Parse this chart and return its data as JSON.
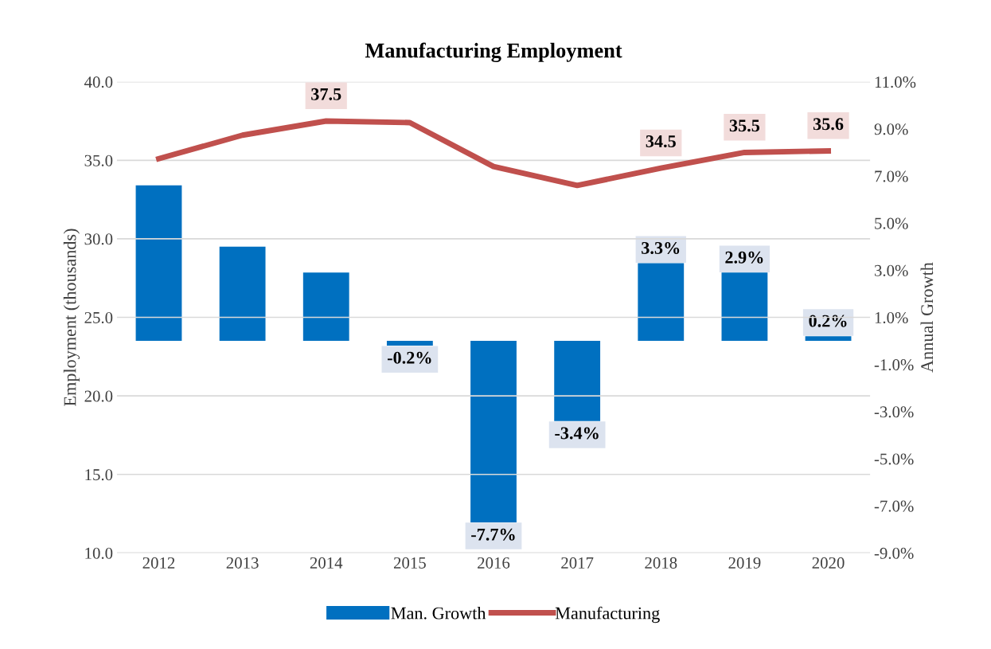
{
  "chart_data": {
    "type": "bar",
    "title": "Manufacturing Employment",
    "ylabel": "Employment (thousands)",
    "y2label": "Annual Growth",
    "categories": [
      "2012",
      "2013",
      "2014",
      "2015",
      "2016",
      "2017",
      "2018",
      "2019",
      "2020"
    ],
    "series": [
      {
        "name": "Man. Growth",
        "axis": "y2",
        "color": "#0070c0",
        "values": [
          6.6,
          4.0,
          2.9,
          -0.2,
          -7.7,
          -3.4,
          3.3,
          2.9,
          0.2
        ],
        "value_labels": [
          null,
          null,
          null,
          "-0.2%",
          "-7.7%",
          "-3.4%",
          "3.3%",
          "2.9%",
          "0.2%"
        ]
      },
      {
        "name": "Manufacturing",
        "type": "line",
        "axis": "y",
        "color": "#c0504d",
        "values": [
          35.1,
          36.6,
          37.5,
          37.4,
          34.6,
          33.4,
          34.5,
          35.5,
          35.6
        ],
        "value_labels": [
          null,
          null,
          "37.5",
          null,
          null,
          null,
          "34.5",
          "35.5",
          "35.6"
        ]
      }
    ],
    "ylim": [
      10,
      40
    ],
    "yticks": [
      {
        "value": 10,
        "label": "10.0"
      },
      {
        "value": 15,
        "label": "15.0"
      },
      {
        "value": 20,
        "label": "20.0"
      },
      {
        "value": 25,
        "label": "25.0"
      },
      {
        "value": 30,
        "label": "30.0"
      },
      {
        "value": 35,
        "label": "35.0"
      },
      {
        "value": 40,
        "label": "40.0"
      }
    ],
    "y2lim": [
      -9,
      11
    ],
    "y2ticks": [
      {
        "value": -9,
        "label": "-9.0%"
      },
      {
        "value": -7,
        "label": "-7.0%"
      },
      {
        "value": -5,
        "label": "-5.0%"
      },
      {
        "value": -3,
        "label": "-3.0%"
      },
      {
        "value": -1,
        "label": "-1.0%"
      },
      {
        "value": 1,
        "label": "1.0%"
      },
      {
        "value": 3,
        "label": "3.0%"
      },
      {
        "value": 5,
        "label": "5.0%"
      },
      {
        "value": 7,
        "label": "7.0%"
      },
      {
        "value": 9,
        "label": "9.0%"
      },
      {
        "value": 11,
        "label": "11.0%"
      }
    ],
    "grid": "y",
    "legend": "bottom",
    "marker": "none",
    "line_style": "solid"
  }
}
